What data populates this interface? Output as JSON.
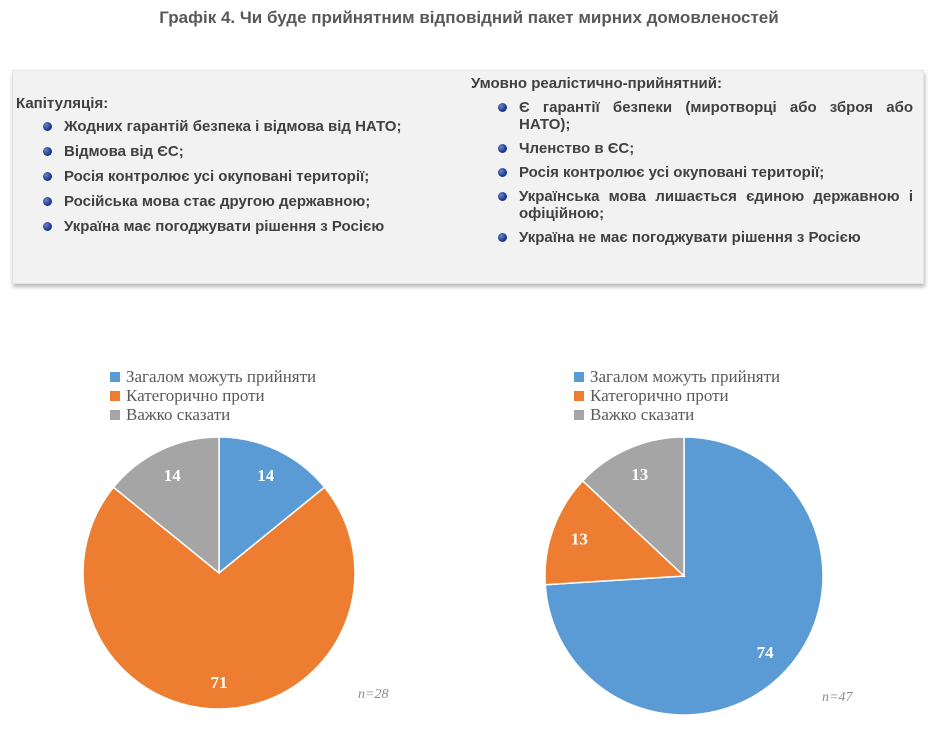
{
  "title": "Графік 4. Чи буде прийнятним відповідний пакет мирних домовленостей",
  "left_column": {
    "heading": "Капітуляція:",
    "items": [
      "Жодних гарантій безпека і відмова від НАТО;",
      "Відмова від ЄС;",
      "Росія контролює усі окуповані території;",
      "Російська мова стає другою державною;",
      "Україна має погоджувати рішення з Росією"
    ]
  },
  "right_column": {
    "heading": "Умовно реалістично-прийнятний:",
    "items": [
      "Є гарантії безпеки (миротворці або зброя або НАТО);",
      "Членство в ЄС;",
      "Росія контролює усі окуповані території;",
      "Українська мова лишається єдиною державною і офіційною;",
      "Україна не має погоджувати рішення з Росією"
    ]
  },
  "colors": {
    "blue": "#5b9bd5",
    "orange": "#ed7d31",
    "gray": "#a5a5a5",
    "bullet": "#1f3f8f"
  },
  "chart_data": [
    {
      "type": "pie",
      "categories": [
        "Загалом можуть прийняти",
        "Категорично проти",
        "Важко сказати"
      ],
      "values": [
        14,
        71,
        14
      ],
      "colors": [
        "#5b9bd5",
        "#ed7d31",
        "#a5a5a5"
      ],
      "legend": "top",
      "note": "n=28"
    },
    {
      "type": "pie",
      "categories": [
        "Загалом можуть прийняти",
        "Категорично проти",
        "Важко сказати"
      ],
      "values": [
        74,
        13,
        13
      ],
      "colors": [
        "#5b9bd5",
        "#ed7d31",
        "#a5a5a5"
      ],
      "legend": "top",
      "note": "n=47"
    }
  ]
}
